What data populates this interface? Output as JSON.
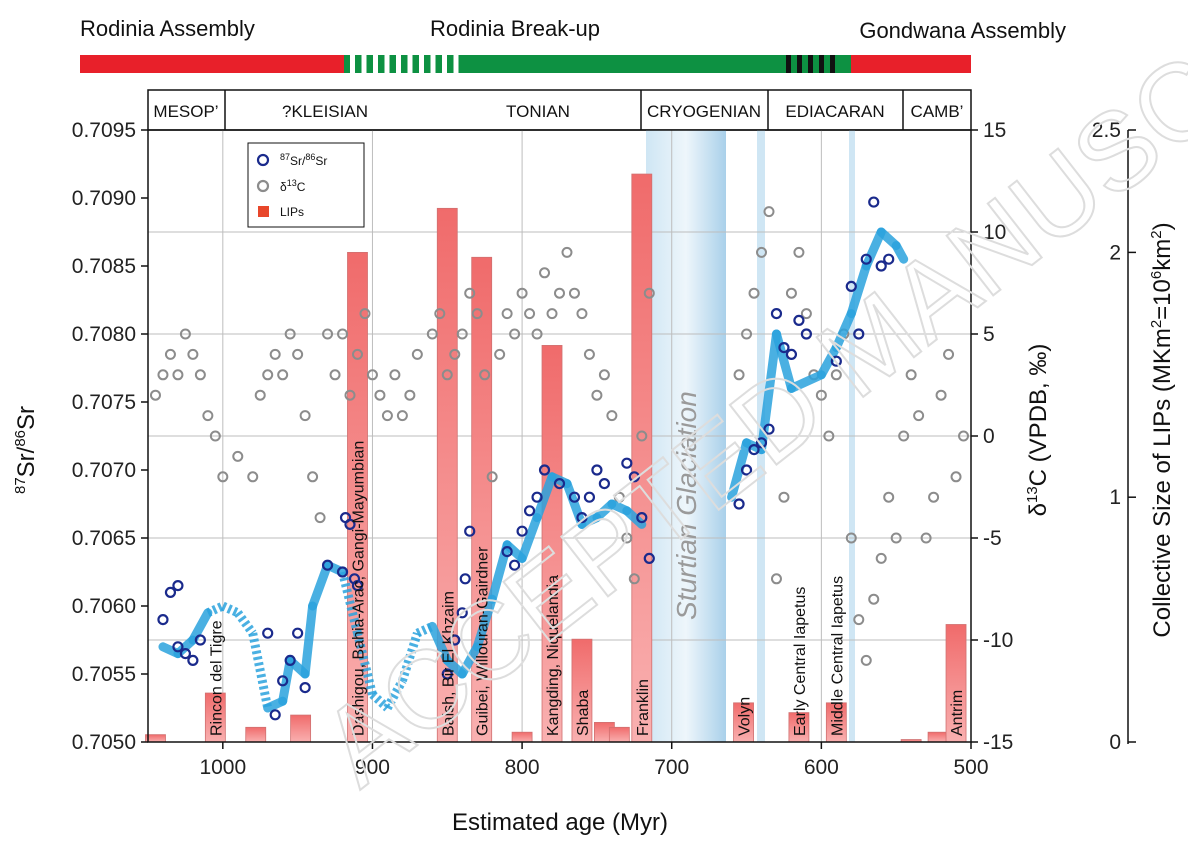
{
  "phases": [
    {
      "label": "Rodinia Assembly",
      "color": "#e8202a"
    },
    {
      "label": "Rodinia Break-up",
      "color": "#0d9142"
    },
    {
      "label": "Gondwana Assembly",
      "color": "#e8202a"
    }
  ],
  "periods": [
    "MESOP’",
    "?KLEISIAN",
    "TONIAN",
    "CRYOGENIAN",
    "EDIACARAN",
    "CAMB’"
  ],
  "glaciation_label": "Sturtian Glaciation",
  "watermark": "ACCEPTED MANUSCRIPT",
  "chart_data": {
    "type": "scatter",
    "xlabel": "Estimated age (Myr)",
    "ylabel_left": "87Sr/86Sr",
    "ylabel_right": "δ13C (VPDB, ‰)",
    "ylabel_far_right": "Collective Size of LIPs (MKm2=106km2)",
    "xlim": [
      1050,
      500
    ],
    "x_ticks": [
      1000,
      900,
      800,
      700,
      600,
      500
    ],
    "ylim_sr": [
      0.705,
      0.7095
    ],
    "sr_ticks": [
      "0.7050",
      "0.7055",
      "0.7060",
      "0.7065",
      "0.7070",
      "0.7075",
      "0.7080",
      "0.7085",
      "0.7090",
      "0.7095"
    ],
    "ylim_c": [
      -15,
      15
    ],
    "c_ticks": [
      -15,
      -10,
      -5,
      0,
      5,
      10,
      15
    ],
    "ylim_lip": [
      0,
      2.5
    ],
    "lip_ticks": [
      "0",
      "1",
      "2",
      "2.5"
    ],
    "grid": true,
    "legend_position": "top-left",
    "legend": [
      {
        "label": "87Sr/86Sr",
        "marker": "circle",
        "color": "#1a2a8c"
      },
      {
        "label": "δ13C",
        "marker": "circle",
        "color": "#8c8c8c"
      },
      {
        "label": "LIPs",
        "marker": "square",
        "color": "#e8472b"
      }
    ],
    "sr_trend": [
      [
        1040,
        0.7057
      ],
      [
        1030,
        0.70565
      ],
      [
        1020,
        0.70575
      ],
      [
        1010,
        0.70595
      ],
      [
        1000,
        0.706
      ],
      [
        990,
        0.70595
      ],
      [
        980,
        0.7058
      ],
      [
        970,
        0.70525
      ],
      [
        960,
        0.7053
      ],
      [
        955,
        0.7056
      ],
      [
        945,
        0.7055
      ],
      [
        940,
        0.706
      ],
      [
        930,
        0.7063
      ],
      [
        920,
        0.70625
      ],
      [
        910,
        0.7058
      ],
      [
        900,
        0.70535
      ],
      [
        890,
        0.70525
      ],
      [
        880,
        0.70545
      ],
      [
        870,
        0.7058
      ],
      [
        860,
        0.70585
      ],
      [
        850,
        0.7056
      ],
      [
        840,
        0.7055
      ],
      [
        830,
        0.7057
      ],
      [
        820,
        0.70605
      ],
      [
        810,
        0.70645
      ],
      [
        800,
        0.70635
      ],
      [
        790,
        0.70665
      ],
      [
        780,
        0.70695
      ],
      [
        770,
        0.7069
      ],
      [
        760,
        0.7066
      ],
      [
        750,
        0.70665
      ],
      [
        740,
        0.70675
      ],
      [
        730,
        0.7067
      ],
      [
        720,
        0.7066
      ],
      [
        660,
        0.7068
      ],
      [
        650,
        0.7072
      ],
      [
        640,
        0.70715
      ],
      [
        630,
        0.708
      ],
      [
        620,
        0.7076
      ],
      [
        600,
        0.7077
      ],
      [
        590,
        0.7079
      ],
      [
        580,
        0.70815
      ],
      [
        570,
        0.7085
      ],
      [
        560,
        0.70875
      ],
      [
        550,
        0.70865
      ],
      [
        545,
        0.70855
      ]
    ],
    "sr_dashed_segments": [
      [
        1010,
        970
      ],
      [
        920,
        860
      ]
    ],
    "sr_points": [
      [
        1040,
        0.7059
      ],
      [
        1035,
        0.7061
      ],
      [
        1030,
        0.70615
      ],
      [
        1030,
        0.7057
      ],
      [
        1025,
        0.70565
      ],
      [
        1020,
        0.7056
      ],
      [
        1015,
        0.70575
      ],
      [
        970,
        0.7058
      ],
      [
        965,
        0.7052
      ],
      [
        960,
        0.70545
      ],
      [
        955,
        0.7056
      ],
      [
        950,
        0.7058
      ],
      [
        945,
        0.7054
      ],
      [
        930,
        0.7063
      ],
      [
        920,
        0.70625
      ],
      [
        918,
        0.70665
      ],
      [
        915,
        0.7066
      ],
      [
        912,
        0.7062
      ],
      [
        910,
        0.70615
      ],
      [
        850,
        0.7055
      ],
      [
        845,
        0.70575
      ],
      [
        840,
        0.70595
      ],
      [
        838,
        0.7062
      ],
      [
        835,
        0.70655
      ],
      [
        810,
        0.7064
      ],
      [
        805,
        0.7063
      ],
      [
        800,
        0.70655
      ],
      [
        795,
        0.7067
      ],
      [
        790,
        0.7068
      ],
      [
        785,
        0.707
      ],
      [
        775,
        0.7069
      ],
      [
        765,
        0.7068
      ],
      [
        760,
        0.70665
      ],
      [
        755,
        0.7068
      ],
      [
        750,
        0.707
      ],
      [
        745,
        0.7069
      ],
      [
        730,
        0.70705
      ],
      [
        725,
        0.70695
      ],
      [
        720,
        0.70665
      ],
      [
        715,
        0.70635
      ],
      [
        655,
        0.70675
      ],
      [
        650,
        0.707
      ],
      [
        645,
        0.70715
      ],
      [
        640,
        0.7072
      ],
      [
        635,
        0.7073
      ],
      [
        630,
        0.70815
      ],
      [
        625,
        0.7079
      ],
      [
        620,
        0.70785
      ],
      [
        615,
        0.7081
      ],
      [
        610,
        0.708
      ],
      [
        590,
        0.7078
      ],
      [
        580,
        0.70835
      ],
      [
        575,
        0.708
      ],
      [
        570,
        0.70855
      ],
      [
        565,
        0.70897
      ],
      [
        560,
        0.7085
      ],
      [
        555,
        0.70855
      ]
    ],
    "c_points": [
      [
        1055,
        0
      ],
      [
        1050,
        -3
      ],
      [
        1045,
        2
      ],
      [
        1040,
        3
      ],
      [
        1035,
        4
      ],
      [
        1030,
        3
      ],
      [
        1025,
        5
      ],
      [
        1020,
        4
      ],
      [
        1015,
        3
      ],
      [
        1010,
        1
      ],
      [
        1005,
        0
      ],
      [
        1000,
        -2
      ],
      [
        990,
        -1
      ],
      [
        980,
        -2
      ],
      [
        975,
        2
      ],
      [
        970,
        3
      ],
      [
        965,
        4
      ],
      [
        960,
        3
      ],
      [
        955,
        5
      ],
      [
        950,
        4
      ],
      [
        945,
        1
      ],
      [
        940,
        -2
      ],
      [
        935,
        -4
      ],
      [
        930,
        5
      ],
      [
        925,
        3
      ],
      [
        920,
        5
      ],
      [
        915,
        2
      ],
      [
        910,
        4
      ],
      [
        905,
        6
      ],
      [
        900,
        3
      ],
      [
        895,
        2
      ],
      [
        890,
        1
      ],
      [
        885,
        3
      ],
      [
        880,
        1
      ],
      [
        875,
        2
      ],
      [
        870,
        4
      ],
      [
        860,
        5
      ],
      [
        855,
        6
      ],
      [
        850,
        3
      ],
      [
        845,
        4
      ],
      [
        840,
        5
      ],
      [
        835,
        7
      ],
      [
        830,
        6
      ],
      [
        825,
        3
      ],
      [
        820,
        -2
      ],
      [
        815,
        4
      ],
      [
        810,
        6
      ],
      [
        805,
        5
      ],
      [
        800,
        7
      ],
      [
        795,
        6
      ],
      [
        790,
        5
      ],
      [
        785,
        8
      ],
      [
        780,
        6
      ],
      [
        775,
        7
      ],
      [
        770,
        9
      ],
      [
        765,
        7
      ],
      [
        760,
        6
      ],
      [
        755,
        4
      ],
      [
        750,
        2
      ],
      [
        745,
        3
      ],
      [
        740,
        1
      ],
      [
        735,
        -3
      ],
      [
        730,
        -5
      ],
      [
        725,
        -7
      ],
      [
        720,
        0
      ],
      [
        715,
        7
      ],
      [
        655,
        3
      ],
      [
        650,
        5
      ],
      [
        645,
        7
      ],
      [
        640,
        9
      ],
      [
        635,
        11
      ],
      [
        630,
        -7
      ],
      [
        625,
        -3
      ],
      [
        620,
        7
      ],
      [
        615,
        9
      ],
      [
        610,
        6
      ],
      [
        605,
        3
      ],
      [
        600,
        2
      ],
      [
        595,
        0
      ],
      [
        590,
        3
      ],
      [
        585,
        5
      ],
      [
        580,
        -5
      ],
      [
        575,
        -9
      ],
      [
        570,
        -11
      ],
      [
        565,
        -8
      ],
      [
        560,
        -6
      ],
      [
        555,
        -3
      ],
      [
        550,
        -5
      ],
      [
        545,
        0
      ],
      [
        540,
        3
      ],
      [
        535,
        1
      ],
      [
        530,
        -5
      ],
      [
        525,
        -3
      ],
      [
        520,
        2
      ],
      [
        515,
        4
      ],
      [
        510,
        -2
      ],
      [
        505,
        0
      ]
    ],
    "lips": [
      {
        "name": "Rincon del Tigre",
        "age": 1005,
        "size": 0.2
      },
      {
        "name": "",
        "age": 1045,
        "size": 0.03
      },
      {
        "name": "",
        "age": 978,
        "size": 0.06
      },
      {
        "name": "",
        "age": 948,
        "size": 0.11
      },
      {
        "name": "Dashigou, Bahia-Arac, Gangi-Mayumbian",
        "age": 910,
        "size": 2.0
      },
      {
        "name": "Baish, Bir El Khzaim",
        "age": 850,
        "size": 2.18
      },
      {
        "name": "Guibei, Willouran-Gairdner",
        "age": 827,
        "size": 1.98
      },
      {
        "name": "",
        "age": 800,
        "size": 0.04
      },
      {
        "name": "Kangding, Niquelandia",
        "age": 780,
        "size": 1.62
      },
      {
        "name": "Shaba",
        "age": 760,
        "size": 0.42
      },
      {
        "name": "",
        "age": 745,
        "size": 0.08
      },
      {
        "name": "",
        "age": 735,
        "size": 0.06
      },
      {
        "name": "Franklin",
        "age": 720,
        "size": 2.32
      },
      {
        "name": "Volyn",
        "age": 652,
        "size": 0.16
      },
      {
        "name": "Early Central Iapetus",
        "age": 615,
        "size": 0.12
      },
      {
        "name": "Middle Central Iapetus",
        "age": 590,
        "size": 0.16
      },
      {
        "name": "",
        "age": 540,
        "size": 0.01
      },
      {
        "name": "",
        "age": 522,
        "size": 0.04
      },
      {
        "name": "Antrim",
        "age": 510,
        "size": 0.48
      }
    ]
  }
}
